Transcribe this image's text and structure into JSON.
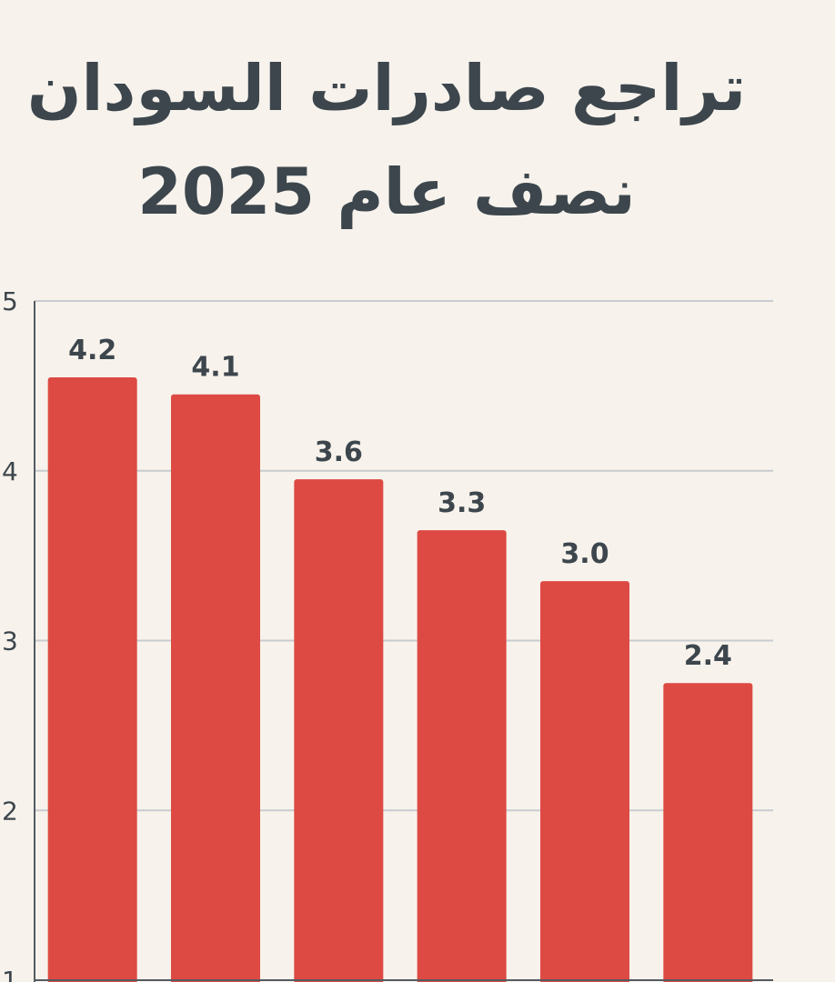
{
  "chart_data": {
    "type": "bar",
    "title_lines": [
      "تراجع صادرات السودان",
      "نصف عام 2025"
    ],
    "categories": [
      "",
      "",
      "",
      "",
      "",
      ""
    ],
    "values": [
      4.2,
      4.1,
      3.6,
      3.3,
      3.0,
      2.4
    ],
    "data_labels": [
      "4.2",
      "4.1",
      "3.6",
      "3.3",
      "3.0",
      "2.4"
    ],
    "y_ticks": [
      1,
      2,
      3,
      4,
      5
    ],
    "y_tick_labels": [
      "1",
      "2",
      "3",
      "4",
      "5"
    ],
    "ylim": [
      1,
      5
    ],
    "grid": true,
    "colors": {
      "bar": "#dd4a43",
      "grid": "#c9ccd0",
      "axis": "#555b61",
      "text": "#3d464d",
      "background": "#f7f3ec"
    }
  }
}
